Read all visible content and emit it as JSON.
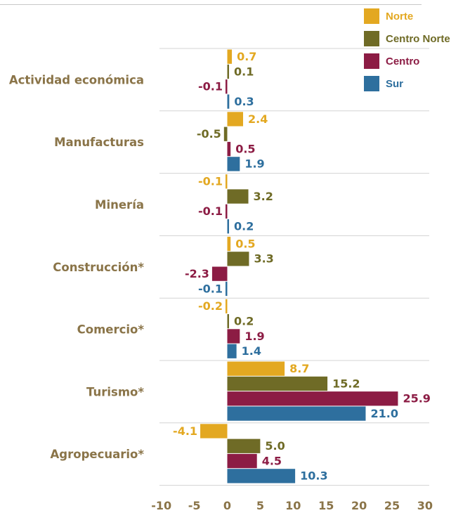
{
  "chart_data": {
    "type": "bar",
    "orientation": "horizontal",
    "categories": [
      "Actividad económica",
      "Manufacturas",
      "Minería",
      "Construcción*",
      "Comercio*",
      "Turismo*",
      "Agropecuario*"
    ],
    "series": [
      {
        "name": "Norte",
        "color": "#e3a821",
        "values": [
          0.7,
          2.4,
          -0.1,
          0.5,
          -0.2,
          8.7,
          -4.1
        ]
      },
      {
        "name": "Centro Norte",
        "color": "#6f6b26",
        "values": [
          0.1,
          -0.5,
          3.2,
          3.3,
          0.2,
          15.2,
          5.0
        ]
      },
      {
        "name": "Centro",
        "color": "#8c1c44",
        "values": [
          -0.1,
          0.5,
          -0.1,
          -2.3,
          1.9,
          25.9,
          4.5
        ]
      },
      {
        "name": "Sur",
        "color": "#2e6f9e",
        "values": [
          0.3,
          1.9,
          0.2,
          -0.1,
          1.4,
          21.0,
          10.3
        ]
      }
    ],
    "xlim": [
      -10,
      30
    ],
    "xticks": [
      "-10",
      "-5",
      "0",
      "5",
      "10",
      "15",
      "20",
      "25",
      "30"
    ],
    "grid": "horizontal separators between categories",
    "legend_position": "top-right"
  }
}
